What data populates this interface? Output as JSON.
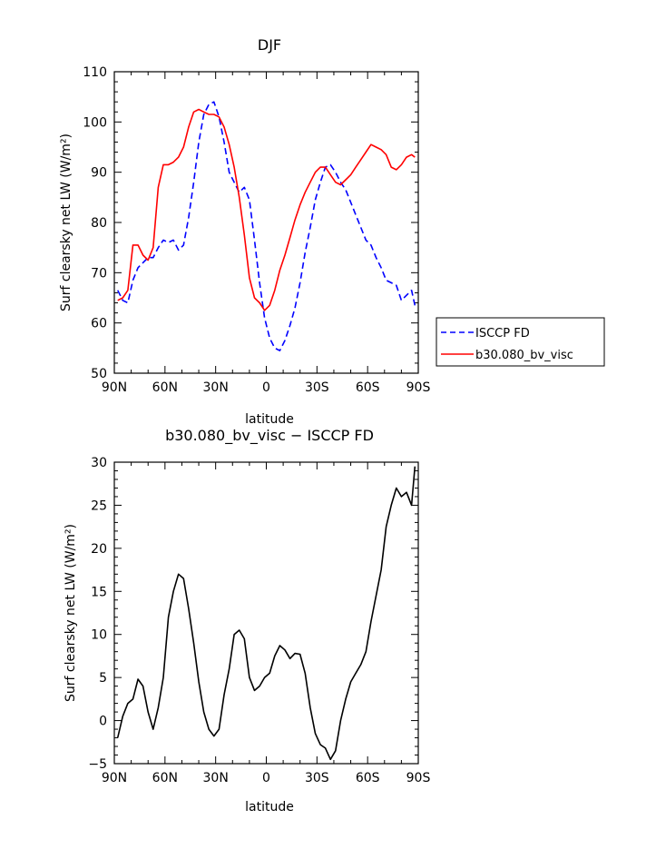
{
  "chart_data": [
    {
      "type": "line",
      "title": "DJF",
      "xlabel": "latitude",
      "ylabel": "Surf clearsky net LW (W/m²)",
      "xlim": [
        90,
        -90
      ],
      "ylim": [
        50,
        110
      ],
      "xticks": [
        90,
        60,
        30,
        0,
        -30,
        -60,
        -90
      ],
      "xtick_labels": [
        "90N",
        "60N",
        "30N",
        "0",
        "30S",
        "60S",
        "90S"
      ],
      "yticks": [
        50,
        60,
        70,
        80,
        90,
        100,
        110
      ],
      "ytick_labels": [
        "50",
        "60",
        "70",
        "80",
        "90",
        "100",
        "110"
      ],
      "legend_position": "right",
      "grid": false,
      "series": [
        {
          "name": "ISCCP FD",
          "color": "#0000ff",
          "dash": "dashed",
          "x": [
            88,
            85,
            82,
            79,
            76,
            73,
            70,
            67,
            64,
            61,
            58,
            55,
            52,
            49,
            46,
            43,
            40,
            37,
            34,
            31,
            28,
            25,
            22,
            19,
            16,
            13,
            10,
            7,
            4,
            1,
            -2,
            -5,
            -8,
            -11,
            -14,
            -17,
            -20,
            -23,
            -26,
            -29,
            -32,
            -35,
            -38,
            -41,
            -44,
            -47,
            -50,
            -53,
            -56,
            -59,
            -62,
            -65,
            -68,
            -71,
            -74,
            -77,
            -80,
            -83,
            -86,
            -88
          ],
          "y": [
            66.5,
            64.5,
            64.0,
            68.5,
            71.0,
            72.0,
            73.0,
            73.0,
            75.0,
            76.5,
            76.0,
            76.5,
            74.5,
            75.5,
            81.0,
            88.0,
            96.0,
            101.5,
            103.5,
            104.0,
            101.0,
            96.0,
            90.0,
            88.0,
            86.0,
            87.0,
            84.5,
            76.5,
            68.0,
            61.0,
            57.0,
            55.0,
            54.5,
            56.5,
            59.5,
            63.0,
            68.0,
            74.0,
            79.0,
            84.5,
            88.0,
            91.0,
            91.5,
            90.0,
            88.0,
            86.5,
            84.0,
            81.5,
            79.0,
            76.5,
            75.5,
            73.0,
            71.0,
            68.5,
            68.0,
            67.5,
            64.5,
            65.5,
            66.5,
            63.5
          ]
        },
        {
          "name": "b30.080_bv_visc",
          "color": "#ff0000",
          "dash": "solid",
          "x": [
            88,
            85,
            82,
            79,
            76,
            73,
            70,
            67,
            64,
            61,
            58,
            55,
            52,
            49,
            46,
            43,
            40,
            37,
            34,
            31,
            28,
            25,
            22,
            19,
            16,
            13,
            10,
            7,
            4,
            1,
            -2,
            -5,
            -8,
            -11,
            -14,
            -17,
            -20,
            -23,
            -26,
            -29,
            -32,
            -35,
            -38,
            -41,
            -44,
            -47,
            -50,
            -53,
            -56,
            -59,
            -62,
            -65,
            -68,
            -71,
            -74,
            -77,
            -80,
            -83,
            -86,
            -88
          ],
          "y": [
            64.5,
            65.0,
            66.5,
            75.5,
            75.5,
            73.5,
            72.5,
            75.0,
            87.0,
            91.5,
            91.5,
            92.0,
            93.0,
            95.0,
            99.0,
            102.0,
            102.5,
            102.0,
            101.5,
            101.5,
            101.0,
            99.0,
            95.5,
            91.0,
            85.0,
            77.5,
            69.0,
            65.0,
            64.0,
            62.5,
            63.5,
            66.5,
            70.5,
            73.5,
            77.0,
            80.5,
            83.5,
            86.0,
            88.0,
            90.0,
            91.0,
            91.0,
            89.5,
            88.0,
            87.5,
            88.5,
            89.5,
            91.0,
            92.5,
            94.0,
            95.5,
            95.0,
            94.5,
            93.5,
            91.0,
            90.5,
            91.5,
            93.0,
            93.5,
            93.0
          ]
        }
      ]
    },
    {
      "type": "line",
      "title": "b30.080_bv_visc − ISCCP FD",
      "xlabel": "latitude",
      "ylabel": "Surf clearsky net LW (W/m²)",
      "xlim": [
        90,
        -90
      ],
      "ylim": [
        -5,
        30
      ],
      "xticks": [
        90,
        60,
        30,
        0,
        -30,
        -60,
        -90
      ],
      "xtick_labels": [
        "90N",
        "60N",
        "30N",
        "0",
        "30S",
        "60S",
        "90S"
      ],
      "yticks": [
        -5,
        0,
        5,
        10,
        15,
        20,
        25,
        30
      ],
      "ytick_labels": [
        "−5",
        "0",
        "5",
        "10",
        "15",
        "20",
        "25",
        "30"
      ],
      "grid": false,
      "series": [
        {
          "color": "#000000",
          "dash": "solid",
          "x": [
            88,
            85,
            82,
            79,
            76,
            73,
            70,
            67,
            64,
            61,
            58,
            55,
            52,
            49,
            46,
            43,
            40,
            37,
            34,
            31,
            28,
            25,
            22,
            19,
            16,
            13,
            10,
            7,
            4,
            1,
            -2,
            -5,
            -8,
            -11,
            -14,
            -17,
            -20,
            -23,
            -26,
            -29,
            -32,
            -35,
            -38,
            -41,
            -44,
            -47,
            -50,
            -53,
            -56,
            -59,
            -62,
            -65,
            -68,
            -71,
            -74,
            -77,
            -80,
            -83,
            -86,
            -88
          ],
          "y": [
            -2.0,
            0.5,
            2.0,
            2.5,
            4.8,
            4.0,
            1.0,
            -1.0,
            1.5,
            5.0,
            12.0,
            15.0,
            17.0,
            16.5,
            13.0,
            9.0,
            4.5,
            1.0,
            -1.0,
            -1.8,
            -1.0,
            3.0,
            6.0,
            10.0,
            10.5,
            9.5,
            5.0,
            3.5,
            4.0,
            5.0,
            5.5,
            7.5,
            8.7,
            8.2,
            7.2,
            7.8,
            7.7,
            5.5,
            1.5,
            -1.5,
            -2.8,
            -3.2,
            -4.5,
            -3.5,
            0.0,
            2.5,
            4.5,
            5.5,
            6.5,
            8.0,
            11.5,
            14.5,
            17.5,
            22.5,
            25.0,
            27.0,
            26.0,
            26.5,
            25.0,
            29.5
          ]
        }
      ]
    }
  ]
}
